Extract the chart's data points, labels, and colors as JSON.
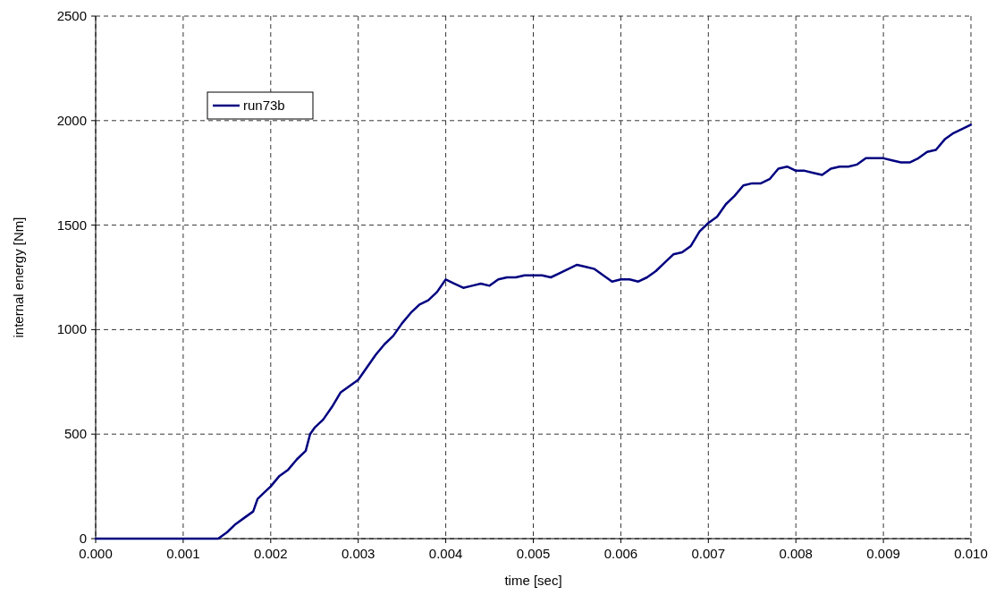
{
  "chart_data": {
    "type": "line",
    "xlabel": "time [sec]",
    "ylabel": "internal energy [Nm]",
    "legend": "top left",
    "grid": true,
    "marker": "none",
    "line_style": "solid",
    "xlim": [
      0,
      0.01
    ],
    "ylim": [
      0,
      2500
    ],
    "xticks": [
      {
        "value": 0,
        "label": "0.000"
      },
      {
        "value": 0.001,
        "label": "0.001"
      },
      {
        "value": 0.002,
        "label": "0.002"
      },
      {
        "value": 0.003,
        "label": "0.003"
      },
      {
        "value": 0.004,
        "label": "0.004"
      },
      {
        "value": 0.005,
        "label": "0.005"
      },
      {
        "value": 0.006,
        "label": "0.006"
      },
      {
        "value": 0.007,
        "label": "0.007"
      },
      {
        "value": 0.008,
        "label": "0.008"
      },
      {
        "value": 0.009,
        "label": "0.009"
      },
      {
        "value": 0.01,
        "label": "0.010"
      }
    ],
    "yticks": [
      0,
      500,
      1000,
      1500,
      2000,
      2500
    ],
    "x": [
      0,
      0.0014,
      0.0015,
      0.0016,
      0.0017,
      0.0018,
      0.00185,
      0.0019,
      0.002,
      0.0021,
      0.0022,
      0.0023,
      0.0024,
      0.00245,
      0.0025,
      0.0026,
      0.0027,
      0.0028,
      0.0029,
      0.003,
      0.0031,
      0.0032,
      0.0033,
      0.0034,
      0.0035,
      0.0036,
      0.0037,
      0.0038,
      0.0039,
      0.004,
      0.0041,
      0.0042,
      0.0043,
      0.0044,
      0.0045,
      0.0046,
      0.0047,
      0.0048,
      0.0049,
      0.005,
      0.0051,
      0.0052,
      0.0053,
      0.0054,
      0.0055,
      0.0056,
      0.0057,
      0.0058,
      0.0059,
      0.006,
      0.0061,
      0.0062,
      0.0063,
      0.0064,
      0.0065,
      0.0066,
      0.0067,
      0.0068,
      0.0069,
      0.007,
      0.0071,
      0.0072,
      0.0073,
      0.0074,
      0.0075,
      0.0076,
      0.0077,
      0.0078,
      0.0079,
      0.008,
      0.0081,
      0.0082,
      0.0083,
      0.0084,
      0.0085,
      0.0086,
      0.0087,
      0.0088,
      0.0089,
      0.009,
      0.0091,
      0.0092,
      0.0093,
      0.0094,
      0.0095,
      0.0096,
      0.0097,
      0.0098,
      0.0099,
      0.01
    ],
    "series": [
      {
        "name": "run73b",
        "color": "#000080",
        "values": [
          0,
          0,
          30,
          70,
          100,
          130,
          190,
          210,
          250,
          300,
          330,
          380,
          420,
          500,
          530,
          570,
          630,
          700,
          730,
          760,
          820,
          880,
          930,
          970,
          1030,
          1080,
          1120,
          1140,
          1180,
          1240,
          1220,
          1200,
          1210,
          1220,
          1210,
          1240,
          1250,
          1250,
          1260,
          1260,
          1260,
          1250,
          1270,
          1290,
          1310,
          1300,
          1290,
          1260,
          1230,
          1240,
          1240,
          1230,
          1250,
          1280,
          1320,
          1360,
          1370,
          1400,
          1470,
          1510,
          1540,
          1600,
          1640,
          1690,
          1700,
          1700,
          1720,
          1770,
          1780,
          1760,
          1760,
          1750,
          1740,
          1770,
          1780,
          1780,
          1790,
          1820,
          1820,
          1820,
          1810,
          1800,
          1800,
          1820,
          1850,
          1860,
          1910,
          1940,
          1960,
          1980
        ]
      }
    ]
  }
}
